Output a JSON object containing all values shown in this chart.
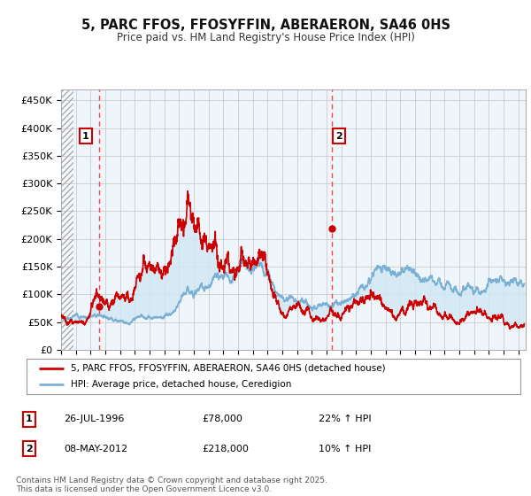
{
  "title": "5, PARC FFOS, FFOSYFFIN, ABERAERON, SA46 0HS",
  "subtitle": "Price paid vs. HM Land Registry's House Price Index (HPI)",
  "xlim_start": 1994.0,
  "xlim_end": 2025.5,
  "ylim_min": 0,
  "ylim_max": 470000,
  "yticks": [
    0,
    50000,
    100000,
    150000,
    200000,
    250000,
    300000,
    350000,
    400000,
    450000
  ],
  "ytick_labels": [
    "£0",
    "£50K",
    "£100K",
    "£150K",
    "£200K",
    "£250K",
    "£300K",
    "£350K",
    "£400K",
    "£450K"
  ],
  "sale1_x": 1996.57,
  "sale1_y": 78000,
  "sale2_x": 2012.35,
  "sale2_y": 218000,
  "sale1_date": "26-JUL-1996",
  "sale1_price": "£78,000",
  "sale1_hpi": "22% ↑ HPI",
  "sale2_date": "08-MAY-2012",
  "sale2_price": "£218,000",
  "sale2_hpi": "10% ↑ HPI",
  "red_color": "#cc0000",
  "blue_color": "#7ab0d4",
  "fill_color": "#d0e8f5",
  "dashed_color": "#ff4444",
  "hatch_color": "#cccccc",
  "grid_color": "#cccccc",
  "plot_bg": "#eef5fb",
  "legend_label_red": "5, PARC FFOS, FFOSYFFIN, ABERAERON, SA46 0HS (detached house)",
  "legend_label_blue": "HPI: Average price, detached house, Ceredigion",
  "footer": "Contains HM Land Registry data © Crown copyright and database right 2025.\nThis data is licensed under the Open Government Licence v3.0."
}
